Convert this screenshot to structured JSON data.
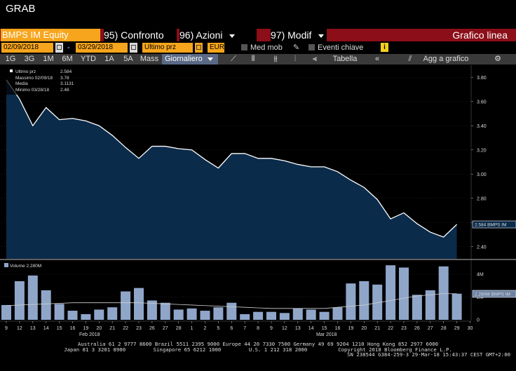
{
  "header": {
    "top_title": "GRAB",
    "ticker": "BMPS IM Equity",
    "menu": [
      {
        "num": "95)",
        "label": "Confronto"
      },
      {
        "num": "96)",
        "label": "Azioni"
      },
      {
        "num": "97)",
        "label": "Modif"
      }
    ],
    "chart_type": "Grafico linea"
  },
  "controls": {
    "date_from": "02/09/2018",
    "date_sep": "-",
    "date_to": "03/29/2018",
    "field": "Ultimo prz",
    "currency": "EUR",
    "med_mob": "Med mob",
    "eventi": "Eventi chiave",
    "info": "i"
  },
  "toolbar": {
    "ranges": [
      "1G",
      "3G",
      "1M",
      "6M",
      "YTD",
      "1A",
      "5A",
      "Mass"
    ],
    "period": "Giornaliero",
    "tabella": "Tabella",
    "add": "Agg a grafico"
  },
  "colors": {
    "header_bg": "#8b0e19",
    "accent": "#f7a51c",
    "area_fill": "#0b2b4b",
    "line": "#ffffff",
    "volume_bar": "#8fa6c9"
  },
  "chart_data": [
    {
      "type": "area",
      "legend": [
        {
          "label": "Ultimo prz",
          "value": "2.584"
        },
        {
          "label": "Massimo 02/09/18",
          "value": "3.78"
        },
        {
          "label": "Media",
          "value": "3.1131"
        },
        {
          "label": "Minimo 03/28/18",
          "value": "2.48"
        }
      ],
      "x": [
        "02/09/2018",
        "02/12/2018",
        "02/13/2018",
        "02/14/2018",
        "02/15/2018",
        "02/16/2018",
        "02/19/2018",
        "02/20/2018",
        "02/21/2018",
        "02/22/2018",
        "02/23/2018",
        "02/26/2018",
        "02/27/2018",
        "02/28/2018",
        "03/01/2018",
        "03/02/2018",
        "03/05/2018",
        "03/06/2018",
        "03/07/2018",
        "03/08/2018",
        "03/09/2018",
        "03/12/2018",
        "03/13/2018",
        "03/14/2018",
        "03/15/2018",
        "03/16/2018",
        "03/19/2018",
        "03/20/2018",
        "03/21/2018",
        "03/22/2018",
        "03/23/2018",
        "03/26/2018",
        "03/27/2018",
        "03/28/2018",
        "03/29/2018"
      ],
      "values": [
        3.78,
        3.62,
        3.4,
        3.55,
        3.45,
        3.46,
        3.44,
        3.4,
        3.32,
        3.22,
        3.13,
        3.23,
        3.23,
        3.21,
        3.2,
        3.12,
        3.05,
        3.17,
        3.17,
        3.13,
        3.13,
        3.11,
        3.08,
        3.06,
        3.06,
        3.02,
        2.95,
        2.89,
        2.79,
        2.63,
        2.68,
        2.59,
        2.52,
        2.48,
        2.584
      ],
      "ylim": [
        2.3,
        3.9
      ],
      "yticks": [
        "3.80",
        "3.60",
        "3.40",
        "3.20",
        "3.00",
        "2.80",
        "2.60",
        "2.40"
      ],
      "yticks_num": [
        3.8,
        3.6,
        3.4,
        3.2,
        3.0,
        2.8,
        2.6,
        2.4
      ],
      "last_label": "2.584 BMPS IM",
      "last_value": 2.584
    },
    {
      "type": "bar",
      "legend": "Volume 2.280M",
      "values": [
        1.3,
        3.4,
        3.9,
        2.6,
        1.4,
        0.8,
        0.5,
        0.9,
        1.1,
        2.5,
        2.8,
        1.7,
        1.5,
        0.9,
        1.0,
        0.8,
        1.1,
        1.5,
        0.5,
        0.7,
        0.7,
        0.6,
        1.0,
        0.9,
        0.7,
        1.1,
        3.2,
        3.4,
        3.1,
        4.8,
        4.6,
        2.2,
        2.6,
        4.7,
        2.3
      ],
      "ma": [
        1.25,
        1.3,
        1.35,
        1.4,
        1.45,
        1.5,
        1.5,
        1.5,
        1.5,
        1.5,
        1.5,
        1.45,
        1.4,
        1.35,
        1.3,
        1.25,
        1.2,
        1.15,
        1.1,
        1.05,
        1.0,
        1.0,
        1.0,
        1.0,
        1.0,
        1.1,
        1.2,
        1.3,
        1.5,
        1.7,
        1.9,
        2.1,
        2.2,
        2.3,
        2.3
      ],
      "ylim": [
        0,
        5
      ],
      "yticks": [
        "4M",
        "2M",
        "0"
      ],
      "yticks_num": [
        4,
        2,
        0
      ],
      "last_label": "2.280M BMPS IM"
    }
  ],
  "xaxis": {
    "ticks": [
      "9",
      "12",
      "13",
      "14",
      "15",
      "16",
      "19",
      "20",
      "21",
      "22",
      "23",
      "26",
      "27",
      "28",
      "1",
      "2",
      "5",
      "6",
      "7",
      "8",
      "9",
      "12",
      "13",
      "14",
      "15",
      "16",
      "19",
      "20",
      "21",
      "22",
      "23",
      "26",
      "27",
      "28",
      "29",
      "30"
    ],
    "months": [
      "Feb 2018",
      "Mar 2018"
    ]
  },
  "footer": {
    "line1": "Australia 61 2 9777 8600 Brazil 5511 2395 9000 Europe 44 20 7330 7500 Germany 49 69 9204 1210 Hong Kong 852 2977 6000",
    "line2": "Japan 81 3 3201 8900         Singapore 65 6212 1000         U.S. 1 212 318 2000          Copyright 2018 Bloomberg Finance L.P.",
    "line3": "SN 238544 G384-259-3 29-Mar-18 15:43:37 CEST GMT+2:00"
  }
}
